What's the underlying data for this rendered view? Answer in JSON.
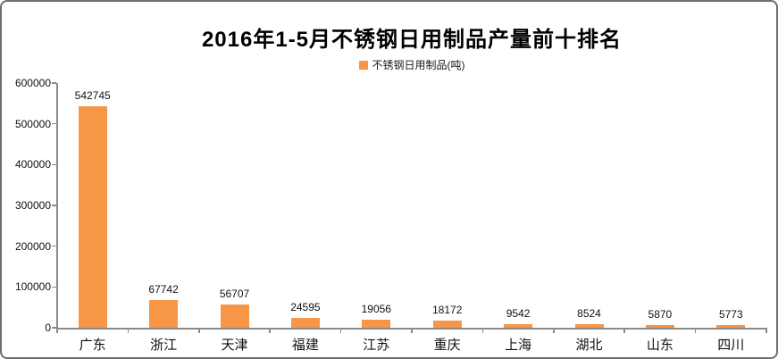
{
  "window": {
    "background": "#ffffff",
    "border_color": "#6e6e6e"
  },
  "chart_data": {
    "type": "bar",
    "title": "2016年1-5月不锈钢日用制品产量前十排名",
    "legend": [
      {
        "label": "不锈钢日用制品(吨)",
        "color": "#F79646",
        "marker": "square"
      }
    ],
    "legend_position": "top",
    "categories": [
      "广东",
      "浙江",
      "天津",
      "福建",
      "江苏",
      "重庆",
      "上海",
      "湖北",
      "山东",
      "四川"
    ],
    "values": [
      542745,
      67742,
      56707,
      24595,
      19056,
      18172,
      9542,
      8524,
      5870,
      5773
    ],
    "data_labels": [
      "542745",
      "67742",
      "56707",
      "24595",
      "19056",
      "18172",
      "9542",
      "8524",
      "5870",
      "5773"
    ],
    "xlabel": "",
    "ylabel": "",
    "ylim": [
      0,
      600000
    ],
    "yticks": [
      0,
      100000,
      200000,
      300000,
      400000,
      500000,
      600000
    ],
    "ytick_labels": [
      "0",
      "100000",
      "200000",
      "300000",
      "400000",
      "500000",
      "600000"
    ],
    "grid": false,
    "bar_color": "#F79646",
    "axis_color": "#8a8a8a",
    "text_color": "#111111"
  }
}
